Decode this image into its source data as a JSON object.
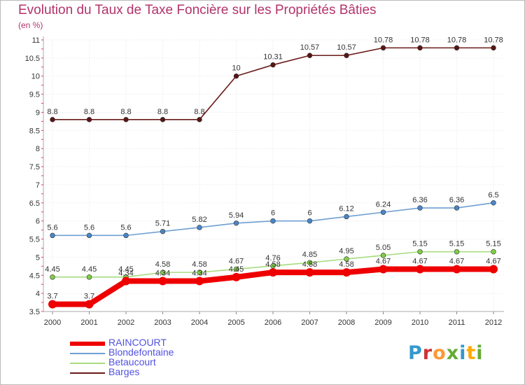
{
  "title": "Evolution du Taux de Taxe Foncière sur les Propriétés Bâties",
  "subtitle": "(en %)",
  "logo": {
    "text": "Proxiti",
    "colors": [
      "#3399cc",
      "#cc3333",
      "#ff9933",
      "#66aa33",
      "#3399cc",
      "#ffaa00",
      "#66aa33"
    ]
  },
  "chart_data": {
    "type": "line",
    "title": "Evolution du Taux de Taxe Foncière sur les Propriétés Bâties",
    "ylabel": "(en %)",
    "xlabel": "",
    "ylim": [
      3.5,
      11
    ],
    "grid": true,
    "legend_position": "bottom-left",
    "categories": [
      "2000",
      "2001",
      "2002",
      "2003",
      "2004",
      "2005",
      "2006",
      "2007",
      "2008",
      "2009",
      "2010",
      "2011",
      "2012"
    ],
    "yticks": [
      "3.5",
      "4",
      "4.5",
      "5",
      "5.5",
      "6",
      "6.5",
      "7",
      "7.5",
      "8",
      "8.5",
      "9",
      "9.5",
      "10",
      "10.5",
      "11"
    ],
    "series": [
      {
        "name": "Barges",
        "color": "#6b1a1a",
        "marker": "#5a1515",
        "values": [
          8.8,
          8.8,
          8.8,
          8.8,
          8.8,
          10,
          10.31,
          10.57,
          10.57,
          10.78,
          10.78,
          10.78,
          10.78
        ],
        "labels": [
          "8.8",
          "8.8",
          "8.8",
          "8.8",
          "8.8",
          "10",
          "10.31",
          "10.57",
          "10.57",
          "10.78",
          "10.78",
          "10.78",
          "10.78"
        ]
      },
      {
        "name": "Blondefontaine",
        "color": "#6f9fd2",
        "marker": "#4a86c8",
        "values": [
          5.6,
          5.6,
          5.6,
          5.71,
          5.82,
          5.94,
          6,
          6,
          6.12,
          6.24,
          6.36,
          6.36,
          6.5
        ],
        "labels": [
          "5.6",
          "5.6",
          "5.6",
          "5.71",
          "5.82",
          "5.94",
          "6",
          "6",
          "6.12",
          "6.24",
          "6.36",
          "6.36",
          "6.5"
        ]
      },
      {
        "name": "Betaucourt",
        "color": "#a8dc80",
        "marker": "#7fce46",
        "values": [
          4.45,
          4.45,
          4.45,
          4.58,
          4.58,
          4.67,
          4.76,
          4.85,
          4.95,
          5.05,
          5.15,
          5.15,
          5.15
        ],
        "labels": [
          "4.45",
          "4.45",
          "4.45",
          "4.58",
          "4.58",
          "4.67",
          "4.76",
          "4.85",
          "4.95",
          "5.05",
          "5.15",
          "5.15",
          "5.15"
        ]
      },
      {
        "name": "RAINCOURT",
        "color": "#ee0000",
        "marker": "#ee0000",
        "values": [
          3.7,
          3.7,
          4.34,
          4.34,
          4.34,
          4.45,
          4.58,
          4.58,
          4.58,
          4.67,
          4.67,
          4.67,
          4.67
        ],
        "labels": [
          "3.7",
          "3.7",
          "4.34",
          "4.34",
          "4.34",
          "4.45",
          "4.58",
          "4.58",
          "4.58",
          "4.67",
          "4.67",
          "4.67",
          "4.67"
        ]
      }
    ]
  },
  "legend": [
    {
      "name": "RAINCOURT",
      "color": "#ee0000"
    },
    {
      "name": "Blondefontaine",
      "color": "#6f9fd2"
    },
    {
      "name": "Betaucourt",
      "color": "#a8dc80"
    },
    {
      "name": "Barges",
      "color": "#6b1a1a"
    }
  ]
}
